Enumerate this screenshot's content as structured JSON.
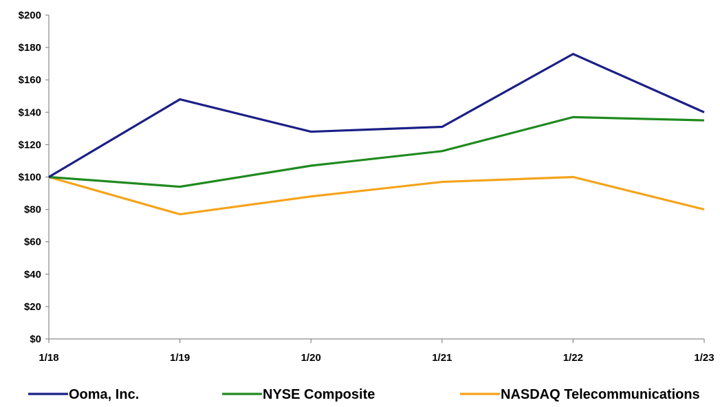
{
  "chart_data": {
    "type": "line",
    "title": "",
    "xlabel": "",
    "ylabel": "",
    "categories": [
      "1/18",
      "1/19",
      "1/20",
      "1/21",
      "1/22",
      "1/23"
    ],
    "ylim": [
      0,
      200
    ],
    "yticks": [
      0,
      20,
      40,
      60,
      80,
      100,
      120,
      140,
      160,
      180,
      200
    ],
    "ytick_labels": [
      "$0",
      "$20",
      "$40",
      "$60",
      "$80",
      "$100",
      "$120",
      "$140",
      "$160",
      "$180",
      "$200"
    ],
    "grid": false,
    "legend_position": "bottom",
    "series": [
      {
        "name": "Ooma, Inc.",
        "color": "#1b1f86",
        "values": [
          100,
          148,
          128,
          131,
          176,
          140
        ]
      },
      {
        "name": "NYSE Composite",
        "color": "#1f8a1f",
        "values": [
          100,
          94,
          107,
          116,
          137,
          135
        ]
      },
      {
        "name": "NASDAQ Telecommunications",
        "color": "#f5a31a",
        "values": [
          100,
          77,
          88,
          97,
          100,
          80
        ]
      }
    ]
  }
}
